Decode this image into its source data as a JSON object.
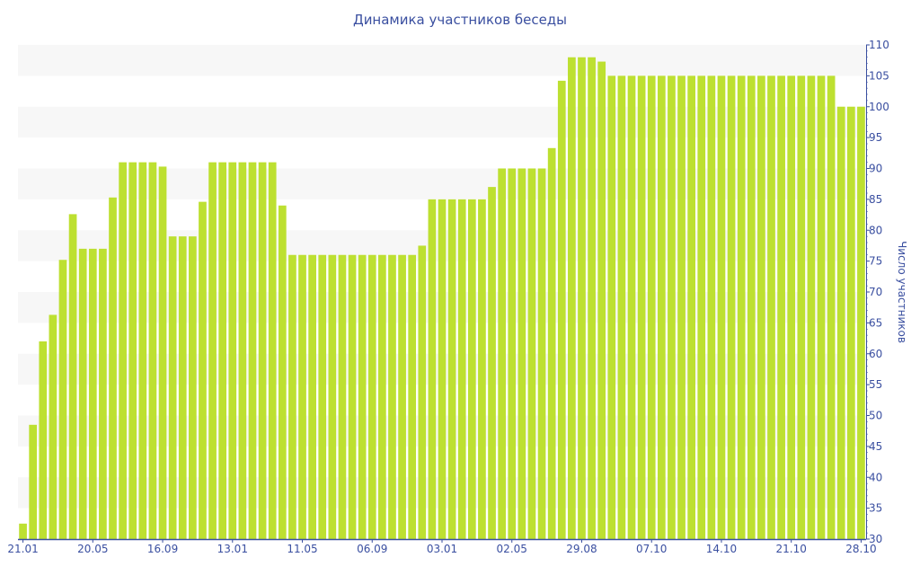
{
  "chart_data": {
    "type": "bar",
    "title": "Динамика участников беседы",
    "xlabel": "",
    "ylabel": "Число участников",
    "ylim": [
      30,
      110
    ],
    "ytick_step": 5,
    "y_axis_side": "right",
    "grid": "alternating horizontal bands",
    "bar_color": "#bde031",
    "axis_color": "#3a4fa0",
    "xtick_every": 7,
    "xtick_labels": [
      "21.01",
      "20.05",
      "16.09",
      "13.01",
      "11.05",
      "06.09",
      "03.01",
      "02.05",
      "29.08",
      "07.10",
      "14.10",
      "21.10",
      "28.10"
    ],
    "values": [
      32.5,
      48.5,
      62,
      66.3,
      75.2,
      82.6,
      77,
      77,
      77,
      85.3,
      91,
      91,
      91,
      91,
      90.3,
      79,
      79,
      79,
      84.6,
      91,
      91,
      91,
      91,
      91,
      91,
      91,
      84,
      76,
      76,
      76,
      76,
      76,
      76,
      76,
      76,
      76,
      76,
      76,
      76,
      76,
      77.5,
      85,
      85,
      85,
      85,
      85,
      85,
      87,
      90,
      90,
      90,
      90,
      90,
      93.3,
      104.2,
      108,
      108,
      108,
      107.3,
      105,
      105,
      105,
      105,
      105,
      105,
      105,
      105,
      105,
      105,
      105,
      105,
      105,
      105,
      105,
      105,
      105,
      105,
      105,
      105,
      105,
      105,
      105,
      100,
      100,
      100
    ]
  }
}
